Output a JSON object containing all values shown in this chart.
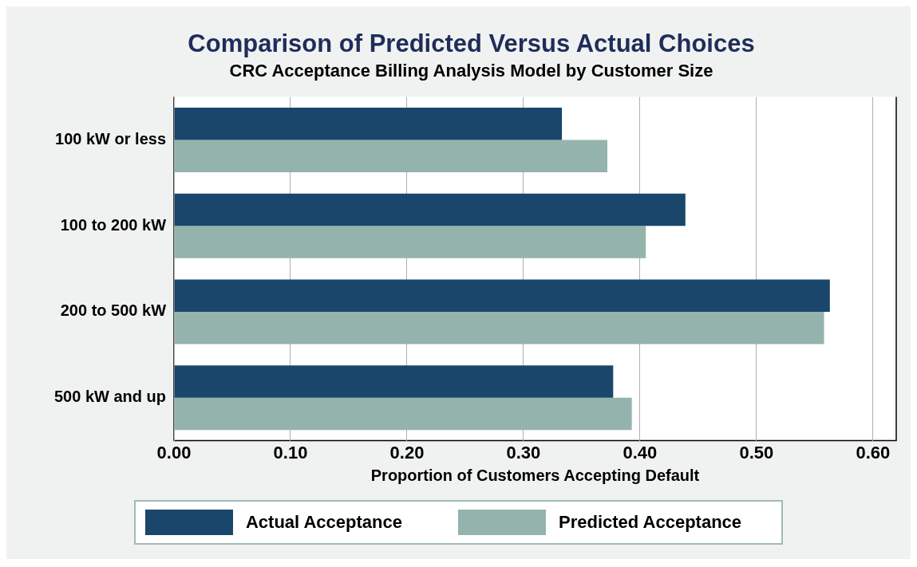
{
  "chart_data": {
    "type": "bar",
    "orientation": "horizontal",
    "title": "Comparison of Predicted Versus Actual Choices",
    "subtitle": "CRC Acceptance Billing Analysis Model by Customer Size",
    "xlabel": "Proportion of Customers Accepting Default",
    "categories": [
      "100 kW or less",
      "100 to 200 kW",
      "200 to 500 kW",
      "500 kW and up"
    ],
    "series": [
      {
        "name": "Actual Acceptance",
        "color": "#1a466b",
        "values": [
          0.333,
          0.439,
          0.563,
          0.377
        ]
      },
      {
        "name": "Predicted Acceptance",
        "color": "#95b3ad",
        "values": [
          0.372,
          0.405,
          0.558,
          0.393
        ]
      }
    ],
    "xlim": [
      0,
      0.62
    ],
    "xticks": [
      {
        "value": 0,
        "label": "0.00"
      },
      {
        "value": 0.1,
        "label": "0.10"
      },
      {
        "value": 0.2,
        "label": "0.20"
      },
      {
        "value": 0.3,
        "label": "0.30"
      },
      {
        "value": 0.4,
        "label": "0.40"
      },
      {
        "value": 0.5,
        "label": "0.50"
      },
      {
        "value": 0.6,
        "label": "0.60"
      }
    ],
    "grid": "x",
    "legend": "bottom"
  }
}
